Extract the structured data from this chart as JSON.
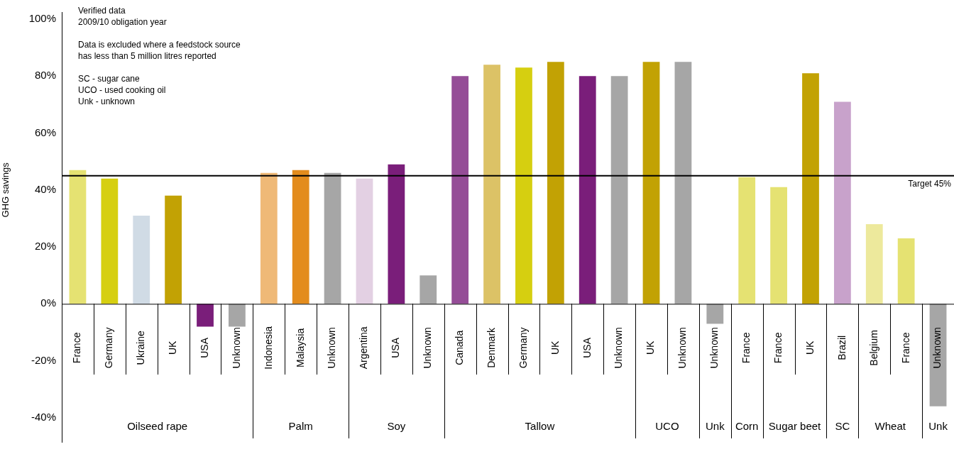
{
  "chart_data": {
    "type": "bar",
    "subtitle": "Verified data\n2009/10 obligation year\n\nData is excluded where a feedstock source\nhas less than 5 million litres reported\n\nSC - sugar cane\nUCO - used cooking oil\nUnk - unknown",
    "ylabel": "GHG savings",
    "categories": [
      "France",
      "Germany",
      "Ukraine",
      "UK",
      "USA",
      "Unknown",
      "Indonesia",
      "Malaysia",
      "Unknown",
      "Argentina",
      "USA",
      "Unknown",
      "Canada",
      "Denmark",
      "Germany",
      "UK",
      "USA",
      "Unknown",
      "UK",
      "Unknown",
      "Unknown",
      "France",
      "France",
      "UK",
      "Brazil",
      "Belgium",
      "France",
      "Unknown"
    ],
    "values": [
      47,
      44,
      31,
      38,
      -8,
      -8,
      46,
      47,
      46,
      44,
      49,
      10,
      80,
      84,
      83,
      85,
      80,
      80,
      85,
      85,
      -7,
      44.5,
      41,
      81,
      71,
      28,
      23,
      -36
    ],
    "colors": [
      "#e5e272",
      "#d6cf10",
      "#d0dbe5",
      "#c2a204",
      "#7a1e7a",
      "#a6a6a6",
      "#efb977",
      "#e38c1d",
      "#a6a6a6",
      "#e3d0e3",
      "#7a1e7a",
      "#a6a6a6",
      "#954d97",
      "#dcc266",
      "#d6cf10",
      "#c2a204",
      "#7a1e7a",
      "#a6a6a6",
      "#c2a204",
      "#a6a6a6",
      "#a6a6a6",
      "#e5e272",
      "#e5e272",
      "#c2a204",
      "#c8a2cb",
      "#ede99c",
      "#e5e272",
      "#a6a6a6"
    ],
    "annotations": [
      "Oilseed rape",
      "Palm",
      "Soy",
      "Tallow",
      "UCO",
      "Unk",
      "Corn",
      "Sugar beet",
      "SC",
      "Wheat",
      "Unk"
    ],
    "ref_lines": [
      {
        "axis": "y",
        "value": 45,
        "label": "Target 45%",
        "color": "#000000"
      }
    ],
    "ylim": [
      -48.5,
      102.5
    ],
    "yticks": [
      {
        "value": -40,
        "label": "-40%"
      },
      {
        "value": -20,
        "label": "-20%"
      },
      {
        "value": 0,
        "label": "0%"
      },
      {
        "value": 20,
        "label": "20%"
      },
      {
        "value": 40,
        "label": "40%"
      },
      {
        "value": 60,
        "label": "60%"
      },
      {
        "value": 80,
        "label": "80%"
      },
      {
        "value": 100,
        "label": "100%"
      }
    ],
    "grid": false,
    "legend": false
  }
}
